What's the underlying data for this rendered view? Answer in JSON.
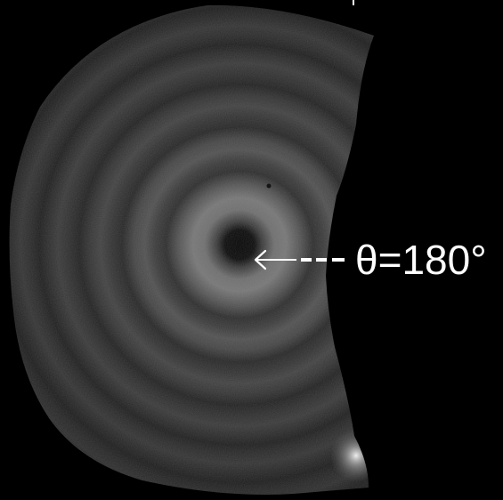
{
  "annotation": {
    "angle_label": "θ=180°"
  },
  "colors": {
    "background": "#000000",
    "annotation": "#ffffff",
    "ring_bright": "#7a7a7a",
    "ring_dark": "#2a2a2a"
  }
}
